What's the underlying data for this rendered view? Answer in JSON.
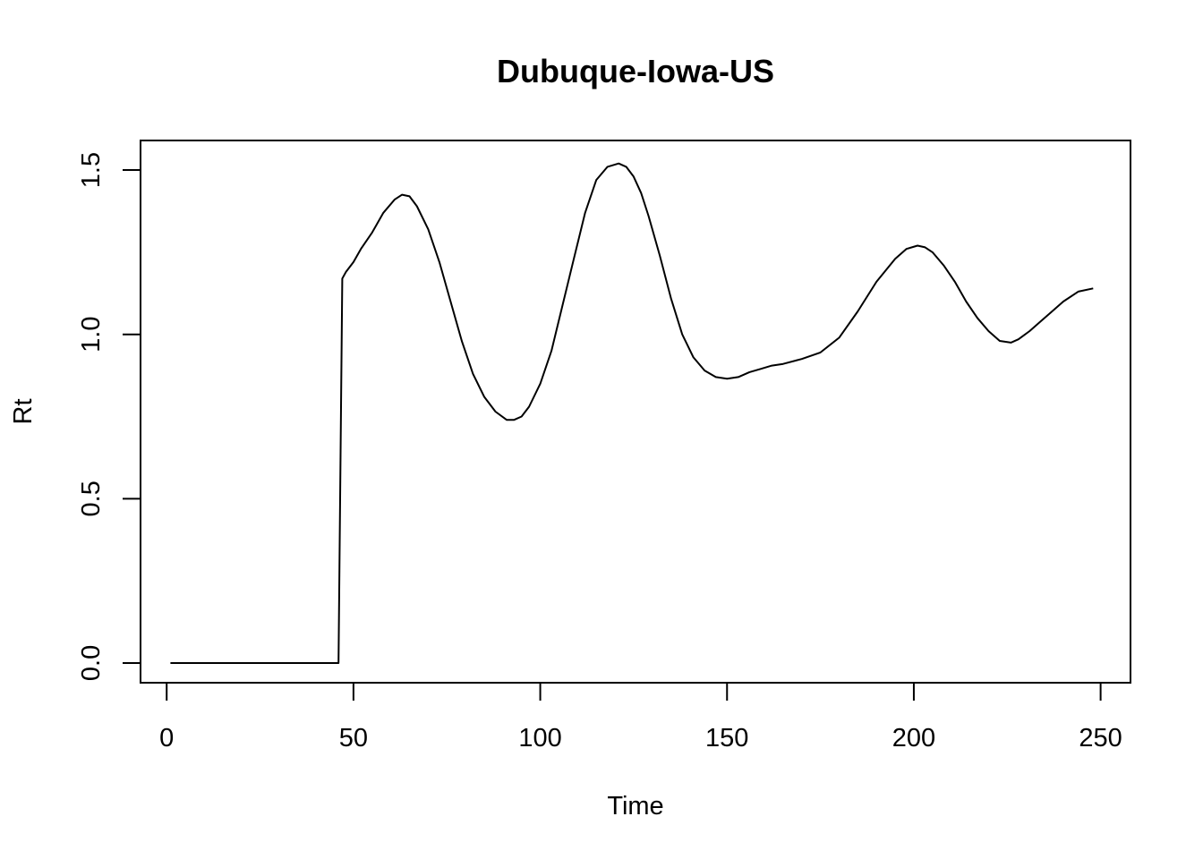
{
  "chart_data": {
    "type": "line",
    "title": "Dubuque-Iowa-US",
    "xlabel": "Time",
    "ylabel": "Rt",
    "xlim": [
      -7,
      258
    ],
    "ylim": [
      -0.06,
      1.59
    ],
    "xticks": [
      0,
      50,
      100,
      150,
      200,
      250
    ],
    "xtick_labels": [
      "0",
      "50",
      "100",
      "150",
      "200",
      "250"
    ],
    "yticks": [
      0.0,
      0.5,
      1.0,
      1.5
    ],
    "ytick_labels": [
      "0.0",
      "0.5",
      "1.0",
      "1.5"
    ],
    "grid": false,
    "legend": "none",
    "series": [
      {
        "color": "#000000",
        "x": [
          1,
          46,
          47,
          48,
          50,
          52,
          55,
          58,
          61,
          63,
          65,
          67,
          70,
          73,
          76,
          79,
          82,
          85,
          88,
          91,
          93,
          95,
          97,
          100,
          103,
          106,
          109,
          112,
          115,
          118,
          121,
          123,
          125,
          127,
          129,
          132,
          135,
          138,
          141,
          144,
          147,
          150,
          153,
          156,
          159,
          162,
          165,
          170,
          175,
          180,
          185,
          190,
          195,
          198,
          201,
          203,
          205,
          208,
          211,
          214,
          217,
          220,
          223,
          226,
          228,
          231,
          234,
          237,
          240,
          244,
          248
        ],
        "y": [
          0.0,
          0.0,
          1.17,
          1.19,
          1.22,
          1.26,
          1.31,
          1.37,
          1.41,
          1.425,
          1.42,
          1.39,
          1.32,
          1.22,
          1.1,
          0.98,
          0.88,
          0.81,
          0.765,
          0.74,
          0.74,
          0.75,
          0.78,
          0.85,
          0.95,
          1.09,
          1.23,
          1.37,
          1.47,
          1.51,
          1.52,
          1.51,
          1.48,
          1.43,
          1.36,
          1.24,
          1.11,
          1.0,
          0.93,
          0.89,
          0.87,
          0.865,
          0.87,
          0.885,
          0.895,
          0.905,
          0.91,
          0.925,
          0.945,
          0.99,
          1.07,
          1.16,
          1.23,
          1.26,
          1.27,
          1.265,
          1.25,
          1.21,
          1.16,
          1.1,
          1.05,
          1.01,
          0.98,
          0.975,
          0.985,
          1.01,
          1.04,
          1.07,
          1.1,
          1.13,
          1.14
        ]
      }
    ]
  }
}
